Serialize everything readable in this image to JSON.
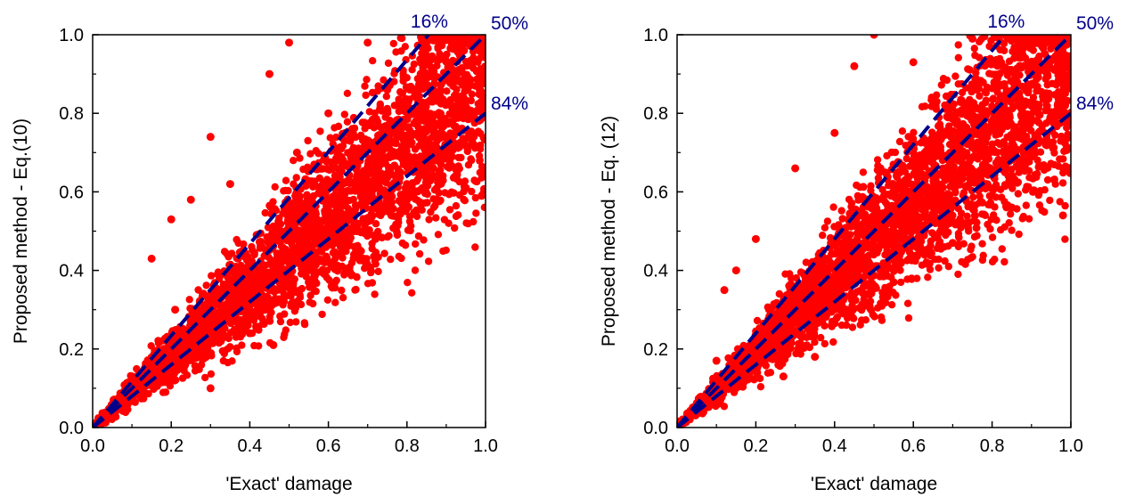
{
  "chart_data": [
    {
      "type": "scatter",
      "xlabel": "'Exact' damage",
      "ylabel": "Proposed method - Eq.(10)",
      "xlim": [
        0.0,
        1.0
      ],
      "ylim": [
        0.0,
        1.0
      ],
      "xticks": [
        "0.0",
        "0.2",
        "0.4",
        "0.6",
        "0.8",
        "1.0"
      ],
      "yticks": [
        "0.0",
        "0.2",
        "0.4",
        "0.6",
        "0.8",
        "1.0"
      ],
      "grid": false,
      "marker_color": "#ff0000",
      "line_color": "#00008b",
      "lines": [
        {
          "label": "16%",
          "slope": 1.17,
          "style": "dashed"
        },
        {
          "label": "50%",
          "slope": 1.0,
          "style": "dashed"
        },
        {
          "label": "84%",
          "slope": 0.8,
          "style": "dashed"
        }
      ],
      "series": [
        {
          "values": [
            [
              0.02,
              0.02
            ],
            [
              0.05,
              0.05
            ],
            [
              0.08,
              0.07
            ],
            [
              0.1,
              0.13
            ],
            [
              0.15,
              0.43
            ],
            [
              0.16,
              0.12
            ],
            [
              0.2,
              0.53
            ],
            [
              0.21,
              0.3
            ],
            [
              0.25,
              0.58
            ],
            [
              0.28,
              0.18
            ],
            [
              0.3,
              0.74
            ],
            [
              0.3,
              0.1
            ],
            [
              0.35,
              0.62
            ],
            [
              0.4,
              0.24
            ],
            [
              0.45,
              0.9
            ],
            [
              0.46,
              0.21
            ],
            [
              0.5,
              0.98
            ],
            [
              0.52,
              0.7
            ],
            [
              0.55,
              0.37
            ],
            [
              0.6,
              0.8
            ],
            [
              0.62,
              0.5
            ],
            [
              0.65,
              0.49
            ],
            [
              0.7,
              0.98
            ],
            [
              0.72,
              0.48
            ],
            [
              0.75,
              0.86
            ],
            [
              0.8,
              0.62
            ],
            [
              0.85,
              0.97
            ],
            [
              0.9,
              0.7
            ],
            [
              0.95,
              0.61
            ],
            [
              0.99,
              0.59
            ],
            [
              1.0,
              0.65
            ],
            [
              1.0,
              0.98
            ]
          ]
        }
      ]
    },
    {
      "type": "scatter",
      "xlabel": "'Exact' damage",
      "ylabel": "Proposed method - Eq. (12)",
      "xlim": [
        0.0,
        1.0
      ],
      "ylim": [
        0.0,
        1.0
      ],
      "xticks": [
        "0.0",
        "0.2",
        "0.4",
        "0.6",
        "0.8",
        "1.0"
      ],
      "yticks": [
        "0.0",
        "0.2",
        "0.4",
        "0.6",
        "0.8",
        "1.0"
      ],
      "grid": false,
      "marker_color": "#ff0000",
      "line_color": "#00008b",
      "lines": [
        {
          "label": "16%",
          "slope": 1.2,
          "style": "dashed"
        },
        {
          "label": "50%",
          "slope": 1.0,
          "style": "dashed"
        },
        {
          "label": "84%",
          "slope": 0.8,
          "style": "dashed"
        }
      ],
      "series": [
        {
          "values": [
            [
              0.02,
              0.02
            ],
            [
              0.05,
              0.06
            ],
            [
              0.1,
              0.17
            ],
            [
              0.12,
              0.35
            ],
            [
              0.15,
              0.4
            ],
            [
              0.2,
              0.48
            ],
            [
              0.23,
              0.25
            ],
            [
              0.27,
              0.13
            ],
            [
              0.3,
              0.66
            ],
            [
              0.35,
              0.18
            ],
            [
              0.4,
              0.75
            ],
            [
              0.45,
              0.92
            ],
            [
              0.5,
              1.0
            ],
            [
              0.55,
              0.37
            ],
            [
              0.6,
              0.93
            ],
            [
              0.65,
              0.73
            ],
            [
              0.7,
              0.47
            ],
            [
              0.73,
              0.52
            ],
            [
              0.75,
              0.99
            ],
            [
              0.8,
              0.65
            ],
            [
              0.85,
              0.56
            ],
            [
              0.9,
              0.92
            ],
            [
              0.95,
              0.8
            ],
            [
              0.98,
              0.54
            ],
            [
              1.0,
              0.66
            ],
            [
              1.0,
              0.98
            ]
          ]
        }
      ]
    }
  ]
}
